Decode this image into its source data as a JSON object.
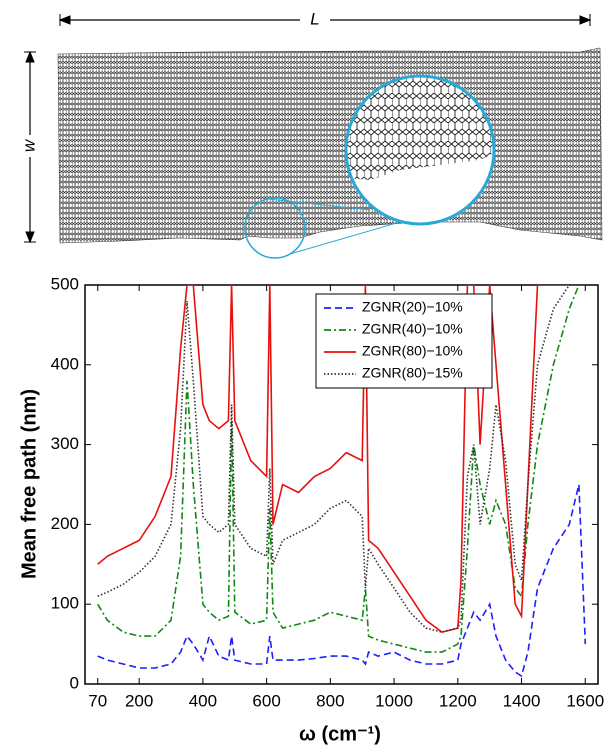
{
  "diagram": {
    "length_label": "L",
    "width_label": "w"
  },
  "chart_data": {
    "type": "line",
    "xlabel": "ω (cm⁻¹)",
    "ylabel": "Mean free path (nm)",
    "xlim": [
      30,
      1640
    ],
    "ylim": [
      0,
      500
    ],
    "xticks": [
      70,
      200,
      400,
      600,
      800,
      1000,
      1200,
      1400,
      1600
    ],
    "yticks": [
      0,
      100,
      200,
      300,
      400,
      500
    ],
    "legend": "upper right",
    "x": [
      70,
      100,
      150,
      200,
      250,
      300,
      330,
      350,
      370,
      400,
      420,
      450,
      480,
      490,
      500,
      550,
      600,
      610,
      620,
      650,
      700,
      750,
      800,
      850,
      900,
      910,
      920,
      950,
      1000,
      1050,
      1100,
      1150,
      1200,
      1210,
      1230,
      1250,
      1270,
      1300,
      1320,
      1350,
      1380,
      1400,
      1420,
      1450,
      1500,
      1550,
      1580,
      1600
    ],
    "series": [
      {
        "name": "ZGNR(20)−10%",
        "color": "#1f1fff",
        "linestyle": "dashed",
        "values": [
          35,
          30,
          25,
          20,
          20,
          25,
          40,
          60,
          50,
          30,
          60,
          35,
          30,
          60,
          30,
          25,
          25,
          60,
          30,
          30,
          30,
          32,
          35,
          35,
          30,
          25,
          40,
          35,
          40,
          30,
          25,
          25,
          30,
          50,
          70,
          90,
          80,
          100,
          60,
          30,
          15,
          10,
          40,
          120,
          170,
          200,
          250,
          50
        ]
      },
      {
        "name": "ZGNR(40)−10%",
        "color": "#118811",
        "linestyle": "dashdot",
        "values": [
          100,
          80,
          65,
          60,
          60,
          80,
          160,
          380,
          250,
          100,
          90,
          80,
          85,
          330,
          90,
          75,
          80,
          220,
          90,
          70,
          75,
          80,
          90,
          85,
          80,
          120,
          60,
          55,
          50,
          45,
          40,
          40,
          50,
          60,
          170,
          300,
          250,
          200,
          230,
          200,
          120,
          110,
          200,
          300,
          400,
          470,
          500,
          500
        ]
      },
      {
        "name": "ZGNR(80)−10%",
        "color": "#e8100f",
        "linestyle": "solid",
        "values": [
          150,
          160,
          170,
          180,
          210,
          260,
          420,
          500,
          500,
          350,
          330,
          320,
          330,
          500,
          330,
          280,
          260,
          500,
          200,
          250,
          240,
          260,
          270,
          290,
          280,
          500,
          180,
          170,
          140,
          110,
          80,
          65,
          70,
          130,
          500,
          500,
          300,
          500,
          400,
          250,
          100,
          85,
          250,
          500,
          500,
          500,
          500,
          500
        ]
      },
      {
        "name": "ZGNR(80)−15%",
        "color": "#333333",
        "linestyle": "dotted",
        "values": [
          110,
          115,
          125,
          140,
          160,
          200,
          320,
          480,
          380,
          210,
          200,
          190,
          200,
          350,
          200,
          170,
          160,
          270,
          150,
          180,
          190,
          200,
          220,
          230,
          210,
          120,
          170,
          150,
          120,
          90,
          70,
          65,
          70,
          80,
          260,
          300,
          200,
          270,
          350,
          280,
          150,
          130,
          250,
          400,
          470,
          500,
          500,
          500
        ]
      }
    ]
  }
}
